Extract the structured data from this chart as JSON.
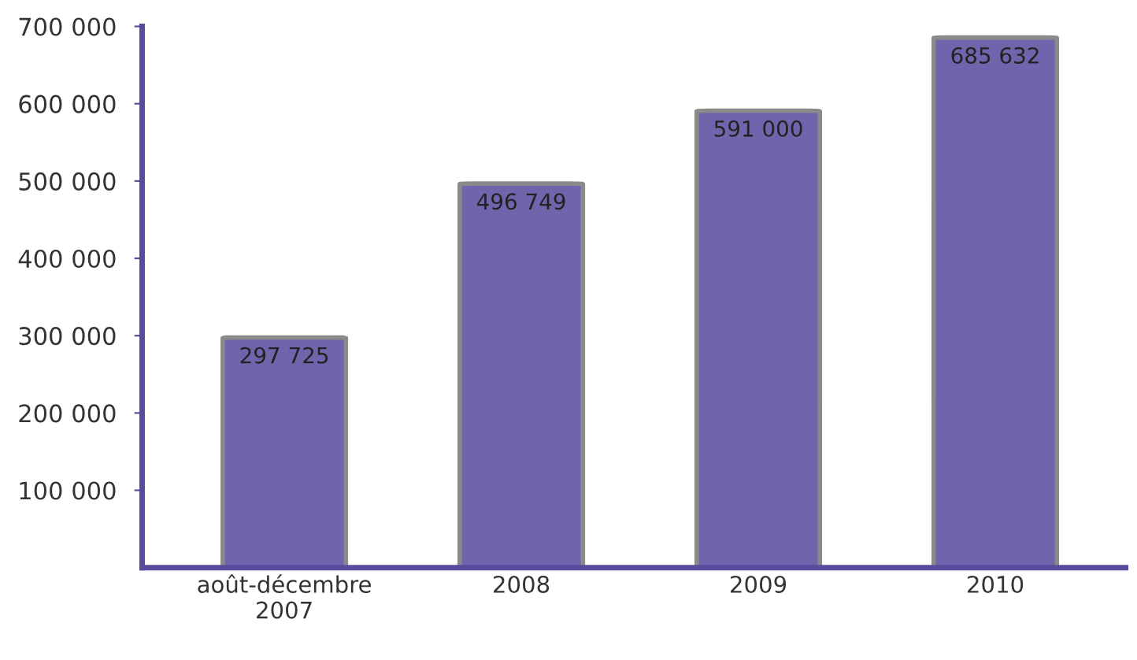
{
  "chart_data": {
    "type": "bar",
    "categories": [
      "août-décembre\n2007",
      "2008",
      "2009",
      "2010"
    ],
    "values": [
      297725,
      496749,
      591000,
      685632
    ],
    "value_labels": [
      "297 725",
      "496 749",
      "591 000",
      "685 632"
    ],
    "color": "#7065ad",
    "ylim": [
      0,
      700000
    ],
    "yticks": [
      {
        "value": 100000,
        "label": "100 000"
      },
      {
        "value": 200000,
        "label": "200 000"
      },
      {
        "value": 300000,
        "label": "300 000"
      },
      {
        "value": 400000,
        "label": "400 000"
      },
      {
        "value": 500000,
        "label": "500 000"
      },
      {
        "value": 600000,
        "label": "600 000"
      },
      {
        "value": 700000,
        "label": "700 000"
      }
    ],
    "grid": false,
    "legend": false
  }
}
